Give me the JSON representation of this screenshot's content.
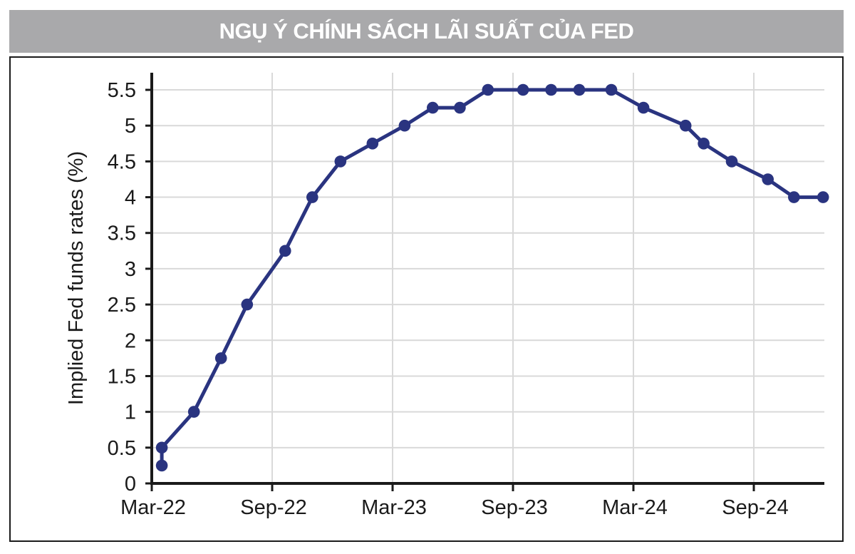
{
  "header": {
    "title": "NGỤ Ý CHÍNH SÁCH LÃI SUẤT CỦA FED",
    "bar_color": "#a9a9ab",
    "text_color": "#ffffff"
  },
  "colors": {
    "series": "#2a3480",
    "gridline": "#d9d9d9",
    "axis": "#1a1a1a",
    "background": "#ffffff"
  },
  "chart_data": {
    "type": "line",
    "title": "NGỤ Ý CHÍNH SÁCH LÃI SUẤT CỦA FED",
    "ylabel": "Implied Fed funds rates (%)",
    "xlabel": "",
    "legend": "none",
    "grid": "both",
    "y_axis": {
      "min": 0,
      "max": 5.75,
      "ticks": [
        0,
        0.5,
        1,
        1.5,
        2,
        2.5,
        3,
        3.5,
        4,
        4.5,
        5,
        5.5
      ],
      "tick_labels": [
        "0",
        "0.5",
        "1",
        "1.5",
        "2",
        "2.5",
        "3",
        "3.5",
        "4",
        "4.5",
        "5",
        "5.5"
      ]
    },
    "x_axis": {
      "unit": "months since Mar-2022",
      "min": 0,
      "max": 33.5,
      "ticks": [
        0,
        6,
        12,
        18,
        24,
        30
      ],
      "tick_labels": [
        "Mar-22",
        "Sep-22",
        "Mar-23",
        "Sep-23",
        "Mar-24",
        "Sep-24"
      ]
    },
    "series": [
      {
        "name": "Implied Fed funds rate (%)",
        "color": "#2a3480",
        "marker": "circle",
        "points": [
          {
            "date": "Mar-22",
            "t": 0.5,
            "value": 0.25
          },
          {
            "date": "Mar-22",
            "t": 0.5,
            "value": 0.5
          },
          {
            "date": "May-22",
            "t": 2.1,
            "value": 1.0
          },
          {
            "date": "Jun-22",
            "t": 3.45,
            "value": 1.75
          },
          {
            "date": "Jul-22",
            "t": 4.75,
            "value": 2.5
          },
          {
            "date": "Sep-22",
            "t": 6.65,
            "value": 3.25
          },
          {
            "date": "Nov-22",
            "t": 8.0,
            "value": 4.0
          },
          {
            "date": "Dec-22",
            "t": 9.4,
            "value": 4.5
          },
          {
            "date": "Feb-23",
            "t": 11.0,
            "value": 4.75
          },
          {
            "date": "Mar-23",
            "t": 12.6,
            "value": 5.0
          },
          {
            "date": "May-23",
            "t": 14.0,
            "value": 5.25
          },
          {
            "date": "Jun-23",
            "t": 15.35,
            "value": 5.25
          },
          {
            "date": "Jul-23",
            "t": 16.75,
            "value": 5.5
          },
          {
            "date": "Sep-23",
            "t": 18.5,
            "value": 5.5
          },
          {
            "date": "Nov-23",
            "t": 19.9,
            "value": 5.5
          },
          {
            "date": "Dec-23",
            "t": 21.3,
            "value": 5.5
          },
          {
            "date": "Jan-24",
            "t": 22.9,
            "value": 5.5
          },
          {
            "date": "Mar-24",
            "t": 24.5,
            "value": 5.25
          },
          {
            "date": "May-24",
            "t": 26.6,
            "value": 5.0
          },
          {
            "date": "Jun-24",
            "t": 27.5,
            "value": 4.75
          },
          {
            "date": "Jul-24",
            "t": 28.9,
            "value": 4.5
          },
          {
            "date": "Sep-24",
            "t": 30.7,
            "value": 4.25
          },
          {
            "date": "Nov-24",
            "t": 32.0,
            "value": 4.0
          },
          {
            "date": "Dec-24",
            "t": 33.45,
            "value": 4.0
          }
        ]
      }
    ]
  }
}
